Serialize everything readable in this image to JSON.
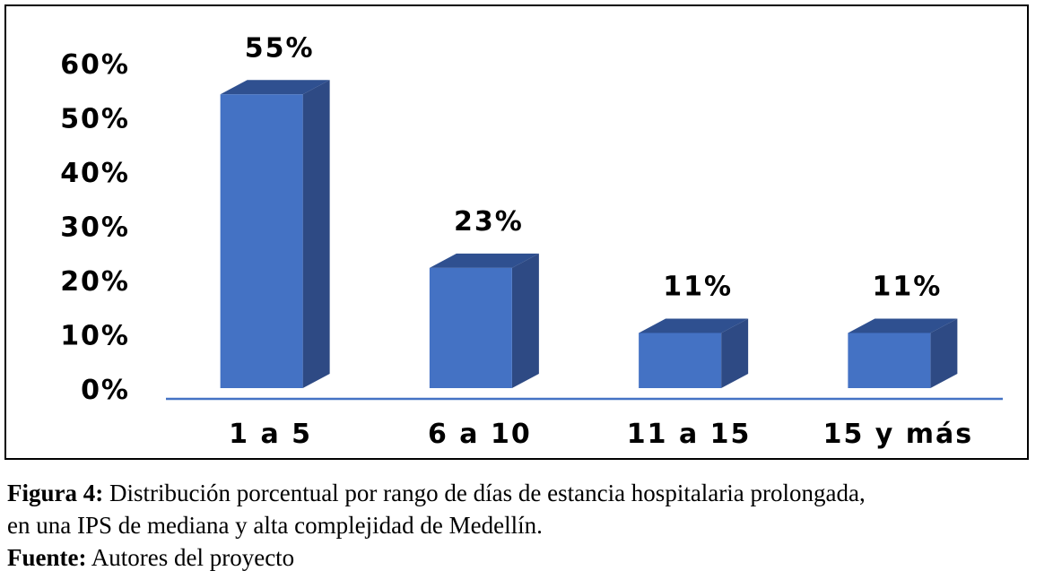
{
  "chart_data": {
    "type": "bar",
    "style": "3d-columns",
    "categories": [
      "1 a 5",
      "6 a 10",
      "11 a 15",
      "15 y más"
    ],
    "values": [
      55,
      23,
      11,
      11
    ],
    "data_labels": [
      "55%",
      "23%",
      "11%",
      "11%"
    ],
    "ylim": [
      0,
      60
    ],
    "yticks": [
      0,
      10,
      20,
      30,
      40,
      50,
      60
    ],
    "ytick_labels": [
      "0%",
      "10%",
      "20%",
      "30%",
      "40%",
      "50%",
      "60%"
    ],
    "grid": false,
    "legend": "none",
    "colors": {
      "bar_front": "#4472C4",
      "bar_side": "#2E4A84",
      "bar_top": "#2F5090",
      "axis": "#4472C4"
    }
  },
  "caption": {
    "figure_label": "Figura 4:",
    "figure_text_line1": " Distribución porcentual por rango de días de estancia hospitalaria prolongada,",
    "figure_text_line2": "en una IPS de mediana y alta complejidad de Medellín.",
    "source_label": "Fuente:",
    "source_text": " Autores del proyecto"
  }
}
